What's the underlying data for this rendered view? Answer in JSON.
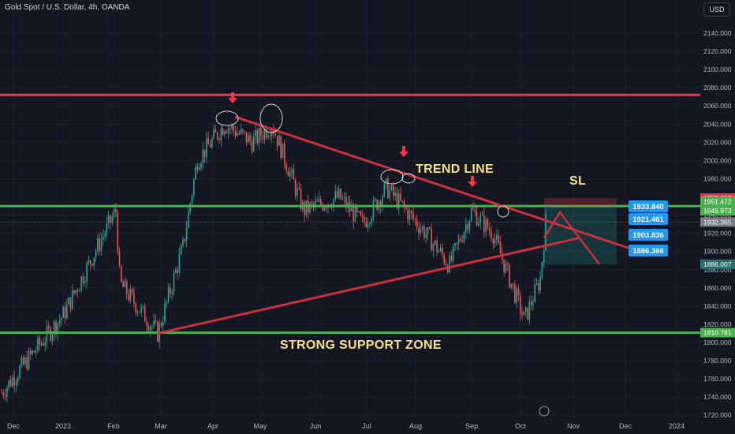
{
  "header": {
    "symbol_title": "Gold Spot / U.S. Dollar, 4h, OANDA",
    "currency": "USD"
  },
  "annotations": {
    "trend_line": "TREND LINE",
    "sl": "SL",
    "support": "STRONG SUPPORT ZONE"
  },
  "colors": {
    "background": "#141722",
    "resistance": "#f23645",
    "support": "#4caf50",
    "trend": "#c9303c",
    "bull": "#26a69a",
    "bear": "#ef5350",
    "target": "#2196f3",
    "grid": "#1e222d",
    "text": "#b2b5be"
  },
  "chart_data": {
    "type": "candlestick",
    "title": "Gold Spot / U.S. Dollar, 4h, OANDA",
    "ylim": [
      1710,
      2150
    ],
    "yticks": [
      1720,
      1740,
      1760,
      1780,
      1800,
      1820,
      1840,
      1860,
      1880,
      1900,
      1920,
      1940,
      1980,
      2000,
      2020,
      2040,
      2060,
      2080,
      2100,
      2120,
      2140
    ],
    "xticks": [
      "Dec",
      "2023",
      "Feb",
      "Mar",
      "Apr",
      "May",
      "Jun",
      "Jul",
      "Aug",
      "Sep",
      "Oct",
      "Nov",
      "Dec",
      "2024"
    ],
    "price_path": [
      [
        "Dec",
        1745
      ],
      [
        "2023",
        1830
      ],
      [
        "Feb",
        1945
      ],
      [
        "Feb",
        1865
      ],
      [
        "Mar",
        1810
      ],
      [
        "Mar",
        1905
      ],
      [
        "Apr",
        2000
      ],
      [
        "Apr",
        2040
      ],
      [
        "May",
        2020
      ],
      [
        "May",
        2040
      ],
      [
        "Jun",
        1945
      ],
      [
        "Jun",
        1960
      ],
      [
        "Jul",
        1930
      ],
      [
        "Jul",
        1970
      ],
      [
        "Aug",
        1920
      ],
      [
        "Aug",
        1885
      ],
      [
        "Sep",
        1945
      ],
      [
        "Sep",
        1920
      ],
      [
        "Oct",
        1825
      ],
      [
        "Oct",
        1870
      ],
      [
        "Oct",
        1932.365
      ]
    ],
    "horizontal_levels": [
      {
        "label": "2072.146",
        "value": 2072.146,
        "color": "#f23645"
      },
      {
        "label": "1949.973",
        "value": 1949.973,
        "color": "#4caf50"
      },
      {
        "label": "1810.781",
        "value": 1810.781,
        "color": "#4caf50"
      }
    ],
    "price_labels": [
      {
        "label": "1958.658",
        "value": 1958.658,
        "color": "#f23645"
      },
      {
        "label": "1951.472",
        "value": 1951.472,
        "color": "#4caf50"
      },
      {
        "label": "1949.973",
        "value": 1949.973,
        "color": "#4caf50"
      },
      {
        "label": "1932.365",
        "value": 1932.365,
        "color": "#787b86"
      },
      {
        "label": "1886.007",
        "value": 1886.007,
        "color": "#2a6f6a"
      },
      {
        "label": "1810.781",
        "value": 1810.781,
        "color": "#4caf50"
      }
    ],
    "targets": [
      "1933.840",
      "1921.461",
      "1903.836",
      "1886.366"
    ]
  }
}
